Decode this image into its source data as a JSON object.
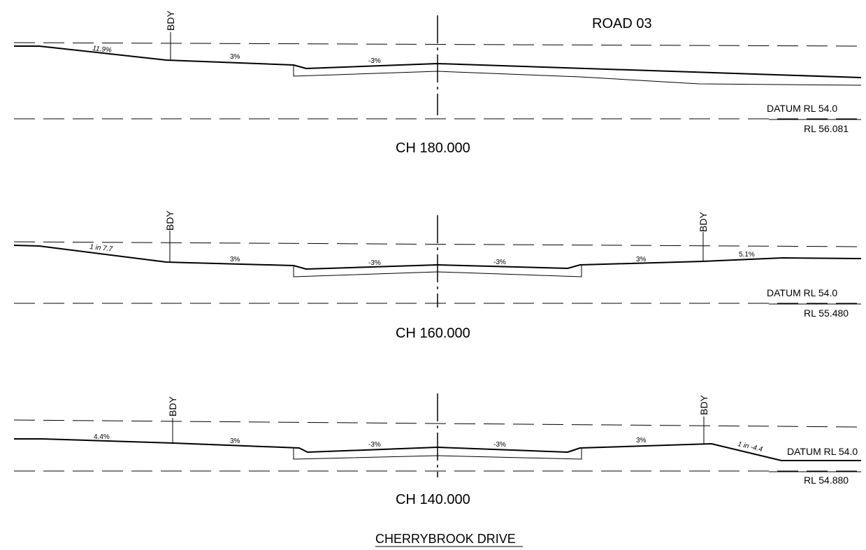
{
  "drawing": {
    "road_label": "ROAD 03",
    "title": "CHERRYBROOK DRIVE",
    "boundary_label": "BDY",
    "datum_label": "DATUM RL 54.0"
  },
  "sections": [
    {
      "chainage": "CH 180.000",
      "rl": "RL 56.081",
      "grades": [
        "11.9%",
        "3%",
        "-3%"
      ]
    },
    {
      "chainage": "CH 160.000",
      "rl": "RL 55.480",
      "grades": [
        "1 in 7.7",
        "3%",
        "-3%",
        "-3%",
        "3%",
        "5.1%"
      ]
    },
    {
      "chainage": "CH 140.000",
      "rl": "RL 54.880",
      "grades": [
        "4.4%",
        "3%",
        "-3%",
        "-3%",
        "3%",
        "1 in -4.4"
      ]
    }
  ]
}
